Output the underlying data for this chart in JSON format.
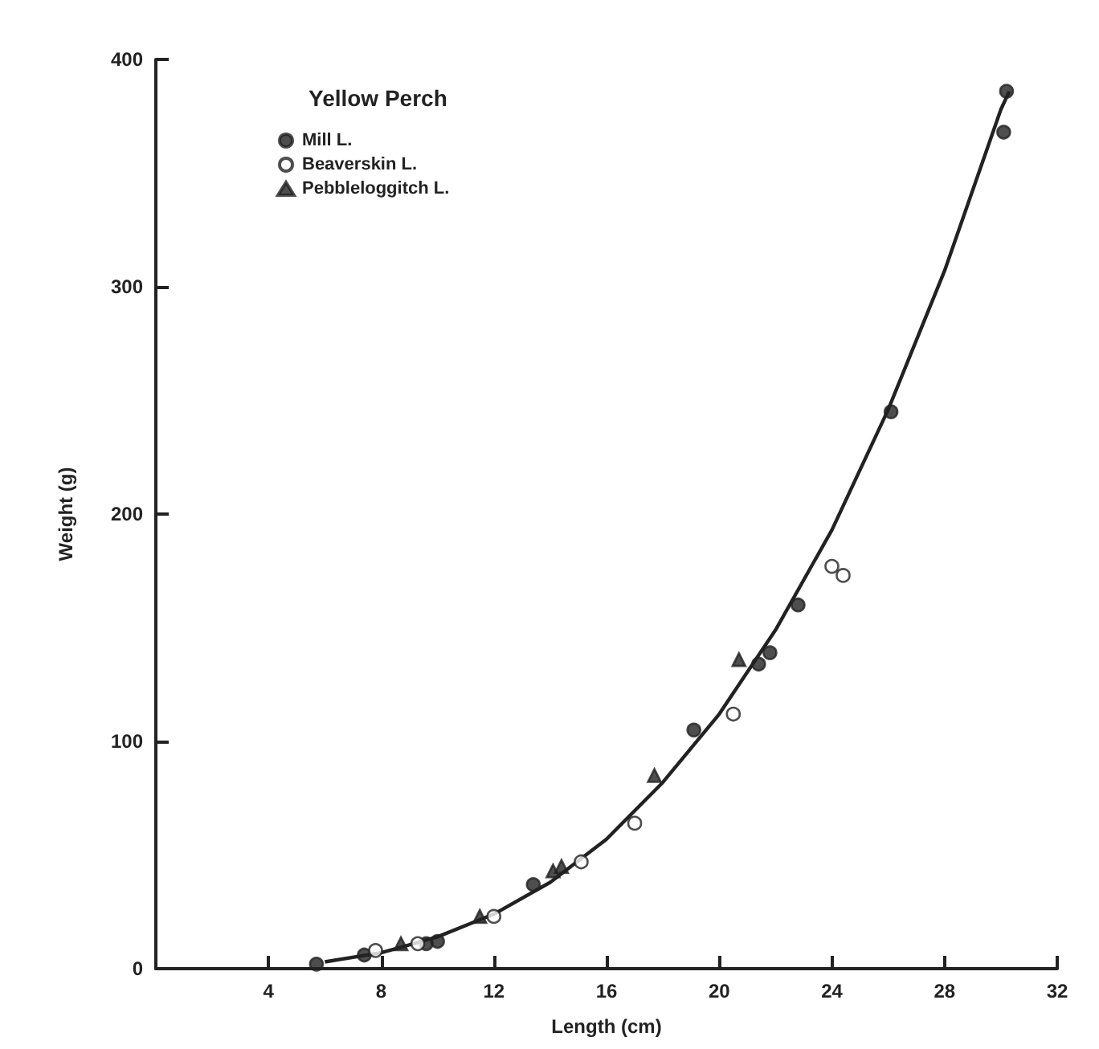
{
  "chart_data": {
    "type": "scatter",
    "title": "Yellow Perch",
    "xlabel": "Length (cm)",
    "ylabel": "Weight (g)",
    "xlim": [
      0,
      32
    ],
    "xticks": [
      4,
      8,
      12,
      16,
      20,
      24,
      28,
      32
    ],
    "ylim": [
      0,
      400
    ],
    "yticks": [
      0,
      100,
      200,
      300,
      400
    ],
    "grid": false,
    "legend": "top left",
    "series": [
      {
        "name": "Mill L.",
        "color": "#222222",
        "marker": "circle",
        "x": [
          5.7,
          7.4,
          9.6,
          10.0,
          13.4,
          19.1,
          21.4,
          21.8,
          22.8,
          26.1,
          30.1,
          30.2
        ],
        "values": [
          2,
          6,
          11,
          12,
          37,
          105,
          134,
          139,
          160,
          245,
          368,
          386
        ]
      },
      {
        "name": "Beaverskin L.",
        "color": "#ffffff",
        "marker": "circle",
        "x": [
          7.8,
          9.3,
          12.0,
          15.1,
          17.0,
          20.5,
          24.0,
          24.4
        ],
        "values": [
          8,
          11,
          23,
          47,
          64,
          112,
          177,
          173
        ]
      },
      {
        "name": "Pebbleloggitch L.",
        "color": "#222222",
        "marker": "triangle",
        "x": [
          8.7,
          11.5,
          14.1,
          14.4,
          17.7,
          20.7
        ],
        "values": [
          11,
          23,
          43,
          45,
          85,
          136
        ]
      },
      {
        "type": "line",
        "color": "#222222",
        "marker": "none",
        "line_style": "solid",
        "x": [
          6,
          8,
          10,
          12,
          14,
          16,
          18,
          20,
          22,
          24,
          26,
          28,
          30,
          30.3
        ],
        "values": [
          3,
          7,
          14,
          24,
          38,
          57,
          82,
          112,
          149,
          193,
          246,
          307,
          378,
          386
        ]
      }
    ]
  }
}
